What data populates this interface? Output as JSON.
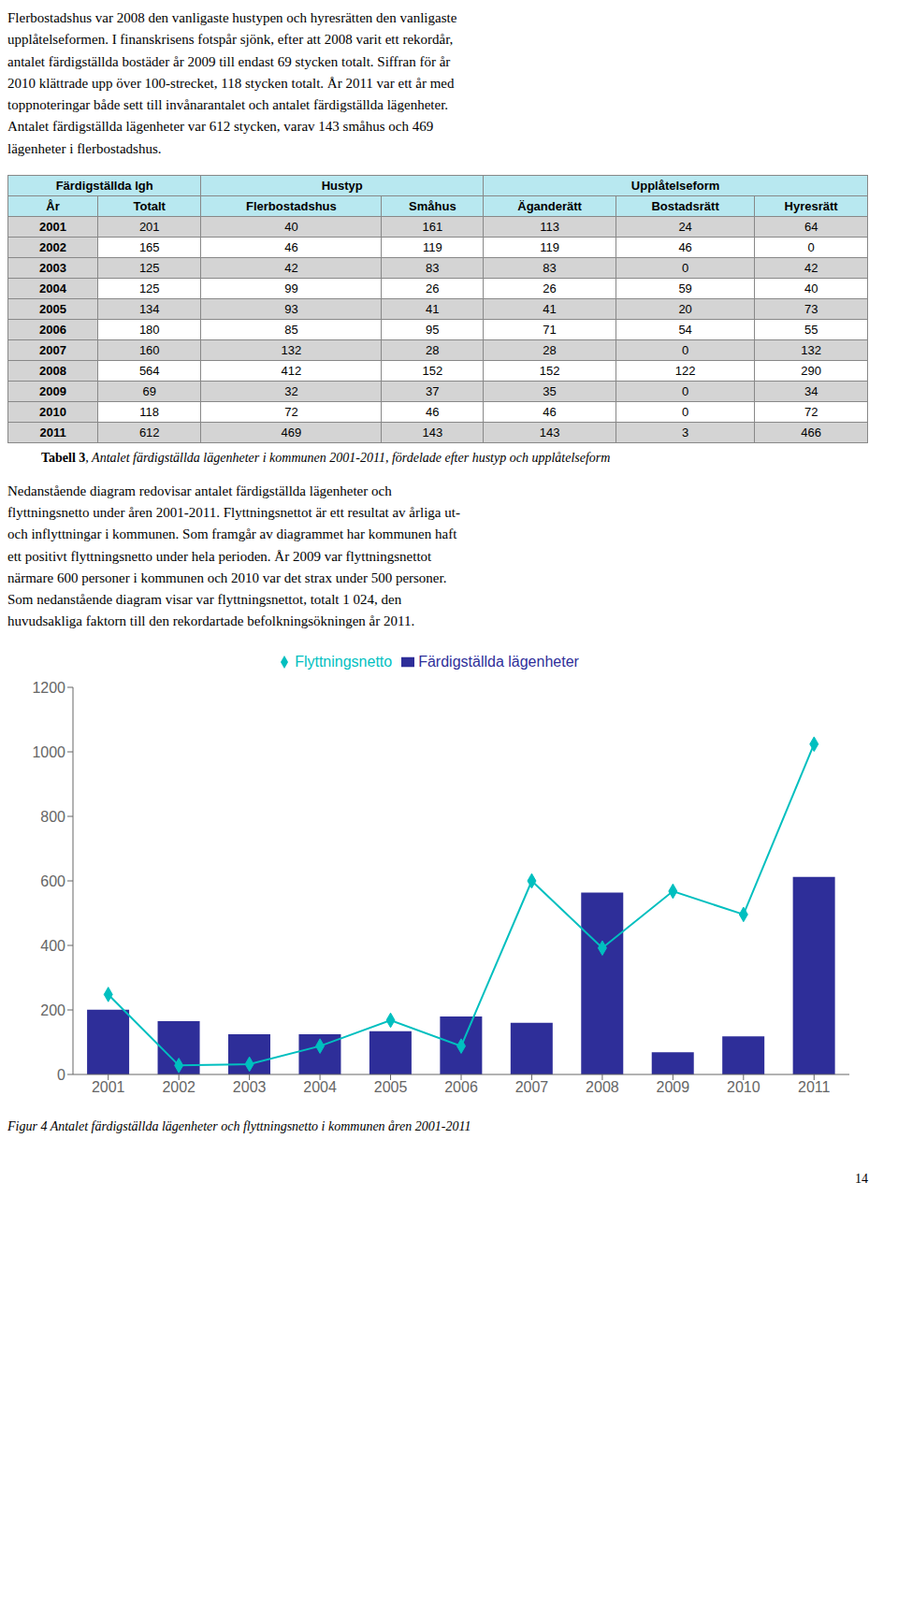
{
  "chart_data": {
    "type": "bar",
    "title": "Figur 4 Antalet färdigställda lägenheter och flyttningsnetto i kommunen åren 2001-2011",
    "categories": [
      "2001",
      "2002",
      "2003",
      "2004",
      "2005",
      "2006",
      "2007",
      "2008",
      "2009",
      "2010",
      "2011"
    ],
    "series": [
      {
        "name": "Färdigställda lägenheter",
        "type": "bar",
        "color": "#2e2e99",
        "values": [
          201,
          165,
          125,
          125,
          134,
          180,
          160,
          564,
          69,
          118,
          612
        ]
      },
      {
        "name": "Flyttningsnetto",
        "type": "line",
        "color": "#00bfbf",
        "marker": "diamond",
        "values": [
          248,
          28,
          32,
          88,
          168,
          88,
          600,
          392,
          568,
          496,
          1024
        ]
      }
    ],
    "ylim": [
      0,
      1200
    ],
    "yticks": [
      0,
      200,
      400,
      600,
      800,
      1000,
      1200
    ],
    "grid": false,
    "legend": "top",
    "annotations": [
      "Flerbostadshus var 2008 den vanligaste hustypen och hyresrätten den vanligaste\nupplåtelseformen. I finanskrisens fotspår sjönk, efter att 2008 varit ett rekordår,\nantalet färdigställda bostäder år 2009 till endast 69 stycken totalt. Siffran för år\n2010 klättrade upp över 100-strecket, 118 stycken totalt. År 2011 var ett år med\ntoppnoteringar både sett till invånarantalet och antalet färdigställda lägenheter.\nAntalet färdigställda lägenheter var 612 stycken, varav 143 småhus och 469\nlägenheter i flerbostadshus.",
      "Nedanstående diagram redovisar antalet färdigställda lägenheter och\nflyttningsnetto under åren 2001-2011. Flyttningsnettot är ett resultat av årliga ut-\noch inflyttningar i kommunen. Som framgår av diagrammet har kommunen haft\nett positivt flyttningsnetto under hela perioden. År 2009 var flyttningsnettot\nnärmare 600 personer i kommunen och 2010 var det strax under 500 personer.\nSom nedanstående diagram visar var flyttningsnettot, totalt 1 024, den\nhuvudsakliga faktorn till den rekordartade befolkningsökningen år 2011.",
      "14"
    ],
    "table": {
      "caption_label": "Tabell 3",
      "caption": ", Antalet färdigställda lägenheter i kommunen 2001-2011, fördelade efter hustyp och upplåtelseform",
      "header_groups": [
        "Färdigställda lgh",
        "Hustyp",
        "Upplåtelseform"
      ],
      "columns": [
        "År",
        "Totalt",
        "Flerbostadshus",
        "Småhus",
        "Äganderätt",
        "Bostadsrätt",
        "Hyresrätt"
      ],
      "rows": [
        [
          2001,
          201,
          40,
          161,
          113,
          24,
          64
        ],
        [
          2002,
          165,
          46,
          119,
          119,
          46,
          0
        ],
        [
          2003,
          125,
          42,
          83,
          83,
          0,
          42
        ],
        [
          2004,
          125,
          99,
          26,
          26,
          59,
          40
        ],
        [
          2005,
          134,
          93,
          41,
          41,
          20,
          73
        ],
        [
          2006,
          180,
          85,
          95,
          71,
          54,
          55
        ],
        [
          2007,
          160,
          132,
          28,
          28,
          0,
          132
        ],
        [
          2008,
          564,
          412,
          152,
          152,
          122,
          290
        ],
        [
          2009,
          69,
          32,
          37,
          35,
          0,
          34
        ],
        [
          2010,
          118,
          72,
          46,
          46,
          0,
          72
        ],
        [
          2011,
          612,
          469,
          143,
          143,
          3,
          466
        ]
      ],
      "header_color": "#b8e8f0",
      "row_colors": [
        "#d4d4d4",
        "#ffffff"
      ]
    }
  }
}
